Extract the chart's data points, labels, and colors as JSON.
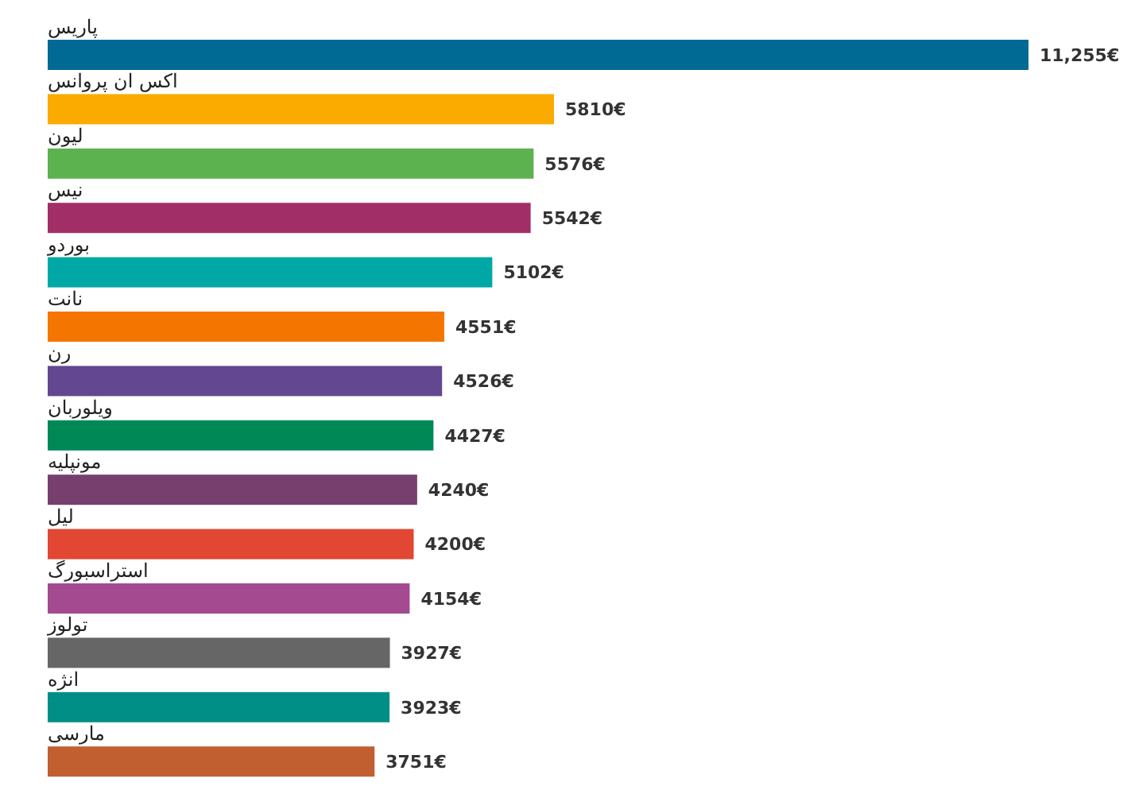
{
  "chart_data": {
    "type": "bar",
    "orientation": "horizontal",
    "categories": [
      "پاریس",
      "اکس ان پروانس",
      "لیون",
      "نیس",
      "بوردو",
      "نانت",
      "رن",
      "ویلوربان",
      "مونپلیه",
      "لیل",
      "استراسبورگ",
      "تولوز",
      "انژه",
      "مارسی"
    ],
    "values": [
      11255,
      5810,
      5576,
      5542,
      5102,
      4551,
      4526,
      4427,
      4240,
      4200,
      4154,
      3927,
      3923,
      3751
    ],
    "colors": [
      "#006994",
      "#fbab00",
      "#5cb24f",
      "#a22e67",
      "#00a8a5",
      "#f47600",
      "#634791",
      "#008957",
      "#773f6e",
      "#e24733",
      "#a44a90",
      "#666666",
      "#008f86",
      "#c15f31"
    ],
    "value_labels": [
      "11,255€",
      "5810€",
      "5576€",
      "5542€",
      "5102€",
      "4551€",
      "4526€",
      "4427€",
      "4240€",
      "4200€",
      "4154€",
      "3927€",
      "3923€",
      "3751€"
    ]
  }
}
